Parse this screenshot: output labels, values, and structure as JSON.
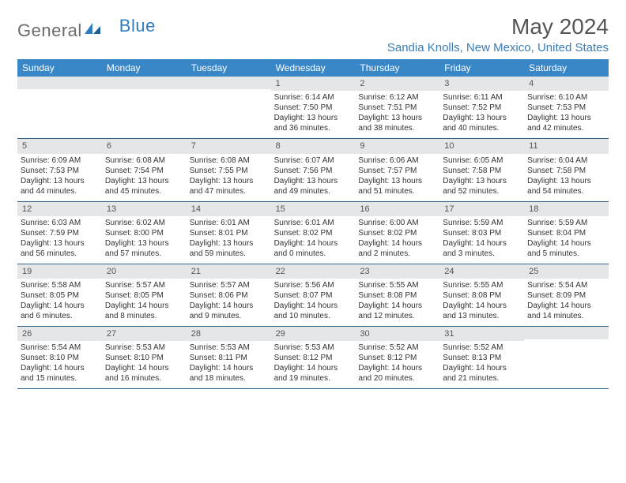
{
  "logo": {
    "part1": "General",
    "part2": "Blue"
  },
  "title": "May 2024",
  "location": "Sandia Knolls, New Mexico, United States",
  "colors": {
    "header_bg": "#3a87c8",
    "header_text": "#ffffff",
    "daynum_bg": "#e4e6e8",
    "row_border": "#34628b",
    "logo_gray": "#6b6b6b",
    "logo_blue": "#2d7dc0",
    "title_color": "#555555",
    "location_color": "#3a7cb5",
    "body_text": "#333333",
    "page_bg": "#ffffff"
  },
  "typography": {
    "title_fontsize": 28,
    "location_fontsize": 15,
    "weekday_fontsize": 12,
    "daynum_fontsize": 11,
    "body_fontsize": 10,
    "font_family": "Arial"
  },
  "weekdays": [
    "Sunday",
    "Monday",
    "Tuesday",
    "Wednesday",
    "Thursday",
    "Friday",
    "Saturday"
  ],
  "weeks": [
    [
      {
        "day": "",
        "sunrise": "",
        "sunset": "",
        "daylight": ""
      },
      {
        "day": "",
        "sunrise": "",
        "sunset": "",
        "daylight": ""
      },
      {
        "day": "",
        "sunrise": "",
        "sunset": "",
        "daylight": ""
      },
      {
        "day": "1",
        "sunrise": "Sunrise: 6:14 AM",
        "sunset": "Sunset: 7:50 PM",
        "daylight": "Daylight: 13 hours and 36 minutes."
      },
      {
        "day": "2",
        "sunrise": "Sunrise: 6:12 AM",
        "sunset": "Sunset: 7:51 PM",
        "daylight": "Daylight: 13 hours and 38 minutes."
      },
      {
        "day": "3",
        "sunrise": "Sunrise: 6:11 AM",
        "sunset": "Sunset: 7:52 PM",
        "daylight": "Daylight: 13 hours and 40 minutes."
      },
      {
        "day": "4",
        "sunrise": "Sunrise: 6:10 AM",
        "sunset": "Sunset: 7:53 PM",
        "daylight": "Daylight: 13 hours and 42 minutes."
      }
    ],
    [
      {
        "day": "5",
        "sunrise": "Sunrise: 6:09 AM",
        "sunset": "Sunset: 7:53 PM",
        "daylight": "Daylight: 13 hours and 44 minutes."
      },
      {
        "day": "6",
        "sunrise": "Sunrise: 6:08 AM",
        "sunset": "Sunset: 7:54 PM",
        "daylight": "Daylight: 13 hours and 45 minutes."
      },
      {
        "day": "7",
        "sunrise": "Sunrise: 6:08 AM",
        "sunset": "Sunset: 7:55 PM",
        "daylight": "Daylight: 13 hours and 47 minutes."
      },
      {
        "day": "8",
        "sunrise": "Sunrise: 6:07 AM",
        "sunset": "Sunset: 7:56 PM",
        "daylight": "Daylight: 13 hours and 49 minutes."
      },
      {
        "day": "9",
        "sunrise": "Sunrise: 6:06 AM",
        "sunset": "Sunset: 7:57 PM",
        "daylight": "Daylight: 13 hours and 51 minutes."
      },
      {
        "day": "10",
        "sunrise": "Sunrise: 6:05 AM",
        "sunset": "Sunset: 7:58 PM",
        "daylight": "Daylight: 13 hours and 52 minutes."
      },
      {
        "day": "11",
        "sunrise": "Sunrise: 6:04 AM",
        "sunset": "Sunset: 7:58 PM",
        "daylight": "Daylight: 13 hours and 54 minutes."
      }
    ],
    [
      {
        "day": "12",
        "sunrise": "Sunrise: 6:03 AM",
        "sunset": "Sunset: 7:59 PM",
        "daylight": "Daylight: 13 hours and 56 minutes."
      },
      {
        "day": "13",
        "sunrise": "Sunrise: 6:02 AM",
        "sunset": "Sunset: 8:00 PM",
        "daylight": "Daylight: 13 hours and 57 minutes."
      },
      {
        "day": "14",
        "sunrise": "Sunrise: 6:01 AM",
        "sunset": "Sunset: 8:01 PM",
        "daylight": "Daylight: 13 hours and 59 minutes."
      },
      {
        "day": "15",
        "sunrise": "Sunrise: 6:01 AM",
        "sunset": "Sunset: 8:02 PM",
        "daylight": "Daylight: 14 hours and 0 minutes."
      },
      {
        "day": "16",
        "sunrise": "Sunrise: 6:00 AM",
        "sunset": "Sunset: 8:02 PM",
        "daylight": "Daylight: 14 hours and 2 minutes."
      },
      {
        "day": "17",
        "sunrise": "Sunrise: 5:59 AM",
        "sunset": "Sunset: 8:03 PM",
        "daylight": "Daylight: 14 hours and 3 minutes."
      },
      {
        "day": "18",
        "sunrise": "Sunrise: 5:59 AM",
        "sunset": "Sunset: 8:04 PM",
        "daylight": "Daylight: 14 hours and 5 minutes."
      }
    ],
    [
      {
        "day": "19",
        "sunrise": "Sunrise: 5:58 AM",
        "sunset": "Sunset: 8:05 PM",
        "daylight": "Daylight: 14 hours and 6 minutes."
      },
      {
        "day": "20",
        "sunrise": "Sunrise: 5:57 AM",
        "sunset": "Sunset: 8:05 PM",
        "daylight": "Daylight: 14 hours and 8 minutes."
      },
      {
        "day": "21",
        "sunrise": "Sunrise: 5:57 AM",
        "sunset": "Sunset: 8:06 PM",
        "daylight": "Daylight: 14 hours and 9 minutes."
      },
      {
        "day": "22",
        "sunrise": "Sunrise: 5:56 AM",
        "sunset": "Sunset: 8:07 PM",
        "daylight": "Daylight: 14 hours and 10 minutes."
      },
      {
        "day": "23",
        "sunrise": "Sunrise: 5:55 AM",
        "sunset": "Sunset: 8:08 PM",
        "daylight": "Daylight: 14 hours and 12 minutes."
      },
      {
        "day": "24",
        "sunrise": "Sunrise: 5:55 AM",
        "sunset": "Sunset: 8:08 PM",
        "daylight": "Daylight: 14 hours and 13 minutes."
      },
      {
        "day": "25",
        "sunrise": "Sunrise: 5:54 AM",
        "sunset": "Sunset: 8:09 PM",
        "daylight": "Daylight: 14 hours and 14 minutes."
      }
    ],
    [
      {
        "day": "26",
        "sunrise": "Sunrise: 5:54 AM",
        "sunset": "Sunset: 8:10 PM",
        "daylight": "Daylight: 14 hours and 15 minutes."
      },
      {
        "day": "27",
        "sunrise": "Sunrise: 5:53 AM",
        "sunset": "Sunset: 8:10 PM",
        "daylight": "Daylight: 14 hours and 16 minutes."
      },
      {
        "day": "28",
        "sunrise": "Sunrise: 5:53 AM",
        "sunset": "Sunset: 8:11 PM",
        "daylight": "Daylight: 14 hours and 18 minutes."
      },
      {
        "day": "29",
        "sunrise": "Sunrise: 5:53 AM",
        "sunset": "Sunset: 8:12 PM",
        "daylight": "Daylight: 14 hours and 19 minutes."
      },
      {
        "day": "30",
        "sunrise": "Sunrise: 5:52 AM",
        "sunset": "Sunset: 8:12 PM",
        "daylight": "Daylight: 14 hours and 20 minutes."
      },
      {
        "day": "31",
        "sunrise": "Sunrise: 5:52 AM",
        "sunset": "Sunset: 8:13 PM",
        "daylight": "Daylight: 14 hours and 21 minutes."
      },
      {
        "day": "",
        "sunrise": "",
        "sunset": "",
        "daylight": ""
      }
    ]
  ]
}
